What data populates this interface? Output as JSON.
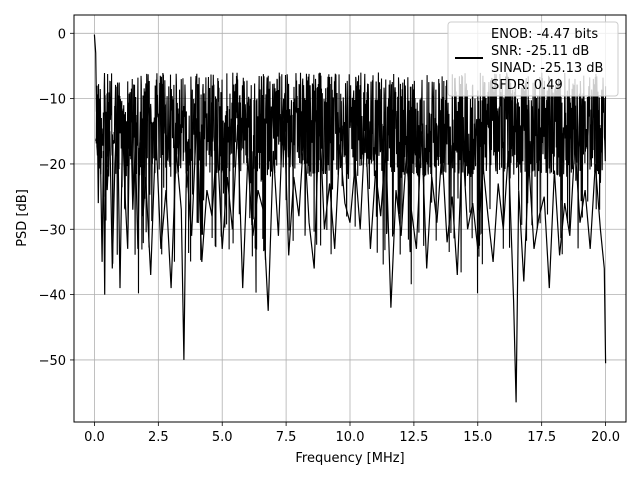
{
  "chart_data": {
    "type": "line",
    "title": "",
    "xlabel": "Frequency [MHz]",
    "ylabel": "PSD [dB]",
    "xlim": [
      -0.8,
      20.8
    ],
    "ylim": [
      -59.5,
      2.8
    ],
    "xticks": [
      0.0,
      2.5,
      5.0,
      7.5,
      10.0,
      12.5,
      15.0,
      17.5,
      20.0
    ],
    "xtick_labels": [
      "0.0",
      "2.5",
      "5.0",
      "7.5",
      "10.0",
      "12.5",
      "15.0",
      "17.5",
      "20.0"
    ],
    "yticks": [
      0,
      -10,
      -20,
      -30,
      -40,
      -50
    ],
    "ytick_labels": [
      "0",
      "−10",
      "−20",
      "−30",
      "−40",
      "−50"
    ],
    "grid": true,
    "legend_position": "top-right",
    "legend": [
      "ENOB: -4.47 bits",
      "SNR: -25.11 dB",
      "SINAD: -25.13 dB",
      "SFDR: 0.49"
    ],
    "series": [
      {
        "color": "#000000",
        "x": [
          0.0,
          0.02,
          0.05,
          0.08,
          0.1,
          0.15,
          0.2,
          0.25,
          0.3,
          0.35,
          0.4,
          0.45,
          0.5,
          0.6,
          0.7,
          0.8,
          0.9,
          1.0,
          1.1,
          1.2,
          1.3,
          1.4,
          1.5,
          1.6,
          1.7,
          1.8,
          1.9,
          2.0,
          2.2,
          2.4,
          2.6,
          2.8,
          3.0,
          3.2,
          3.4,
          3.5,
          3.6,
          3.8,
          4.0,
          4.2,
          4.4,
          4.6,
          4.8,
          5.0,
          5.2,
          5.4,
          5.6,
          5.8,
          6.0,
          6.2,
          6.4,
          6.6,
          6.8,
          7.0,
          7.2,
          7.4,
          7.6,
          7.8,
          8.0,
          8.2,
          8.4,
          8.6,
          8.8,
          9.0,
          9.2,
          9.4,
          9.6,
          9.8,
          10.0,
          10.2,
          10.4,
          10.6,
          10.8,
          11.0,
          11.2,
          11.4,
          11.6,
          11.8,
          12.0,
          12.2,
          12.4,
          12.6,
          12.8,
          13.0,
          13.2,
          13.4,
          13.6,
          13.8,
          14.0,
          14.2,
          14.4,
          14.6,
          14.8,
          15.0,
          15.2,
          15.4,
          15.6,
          15.8,
          16.0,
          16.2,
          16.4,
          16.5,
          16.6,
          16.8,
          17.0,
          17.2,
          17.4,
          17.6,
          17.8,
          18.0,
          18.2,
          18.4,
          18.6,
          18.8,
          19.0,
          19.2,
          19.4,
          19.6,
          19.8,
          19.95,
          20.0
        ],
        "y": [
          -0.2,
          -1.5,
          -3,
          -12,
          -8,
          -26,
          -10,
          -22,
          -35,
          -18,
          -40,
          -12,
          -24,
          -15,
          -36,
          -20,
          -11,
          -39,
          -14,
          -25,
          -33,
          -9,
          -27,
          -17,
          -33,
          -12,
          -28,
          -22,
          -37,
          -15,
          -33,
          -24,
          -39,
          -18,
          -27,
          -50,
          -20,
          -31,
          -13,
          -35,
          -24,
          -28,
          -16,
          -33,
          -22,
          -30,
          -14,
          -39,
          -19,
          -31,
          -24,
          -27,
          -42.5,
          -18,
          -31,
          -10,
          -34,
          -22,
          -28,
          -15,
          -29,
          -36,
          -12,
          -30,
          -23,
          -33,
          -17,
          -26,
          -29,
          -20,
          -30,
          -14,
          -33,
          -21,
          -28,
          -17,
          -42,
          -24,
          -31,
          -19,
          -27,
          -33,
          -15,
          -36,
          -22,
          -29,
          -18,
          -32,
          -25,
          -37,
          -16,
          -30,
          -26,
          -33,
          -20,
          -28,
          -35,
          -23,
          -30,
          -18,
          -41,
          -56.5,
          -24,
          -38,
          -20,
          -33,
          -28,
          -25,
          -39,
          -21,
          -34,
          -26,
          -31,
          -17,
          -29,
          -24,
          -33,
          -20,
          -30,
          -36,
          -50.5
        ]
      }
    ]
  }
}
